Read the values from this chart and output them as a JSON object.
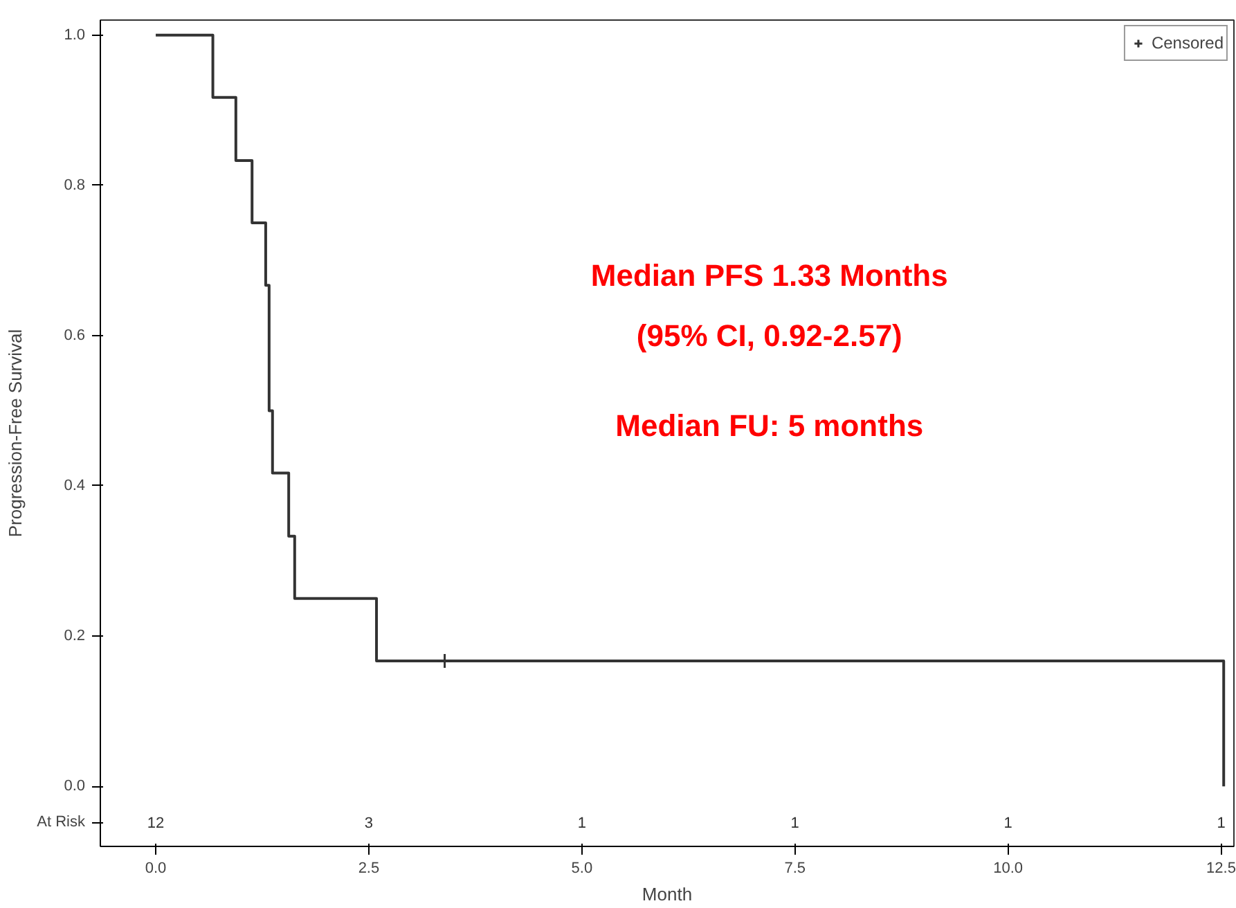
{
  "chart_data": {
    "type": "step",
    "xlabel": "Month",
    "ylabel": "Progression-Free Survival",
    "xlim": [
      -0.65,
      12.65
    ],
    "ylim": [
      -0.08,
      1.02
    ],
    "xticks": [
      {
        "value": 0,
        "label": "0.0"
      },
      {
        "value": 2.5,
        "label": "2.5"
      },
      {
        "value": 5,
        "label": "5.0"
      },
      {
        "value": 7.5,
        "label": "7.5"
      },
      {
        "value": 10,
        "label": "10.0"
      },
      {
        "value": 12.5,
        "label": "12.5"
      }
    ],
    "yticks": [
      {
        "value": 0,
        "label": "0.0"
      },
      {
        "value": 0.2,
        "label": "0.2"
      },
      {
        "value": 0.4,
        "label": "0.4"
      },
      {
        "value": 0.6,
        "label": "0.6"
      },
      {
        "value": 0.8,
        "label": "0.8"
      },
      {
        "value": 1,
        "label": "1.0"
      }
    ],
    "series": [
      {
        "color": "#333333",
        "x": [
          0,
          0.67,
          0.94,
          1.13,
          1.29,
          1.33,
          1.37,
          1.56,
          1.63,
          2.59,
          12.53
        ],
        "values": [
          1,
          0.917,
          0.833,
          0.75,
          0.667,
          0.5,
          0.417,
          0.333,
          0.25,
          0.167,
          0
        ]
      },
      {
        "type": "scatter",
        "name": "Censored",
        "color": "#333333",
        "marker": "cross",
        "x": [
          3.39
        ],
        "values": [
          0.167
        ]
      }
    ],
    "annotations": [
      "Median PFS 1.33 Months",
      "(95% CI, 0.92-2.57)",
      "Median FU: 5 months",
      "At Risk",
      "12",
      "3",
      "1",
      "1",
      "1",
      "1"
    ],
    "grid": false,
    "legend": "top right"
  }
}
